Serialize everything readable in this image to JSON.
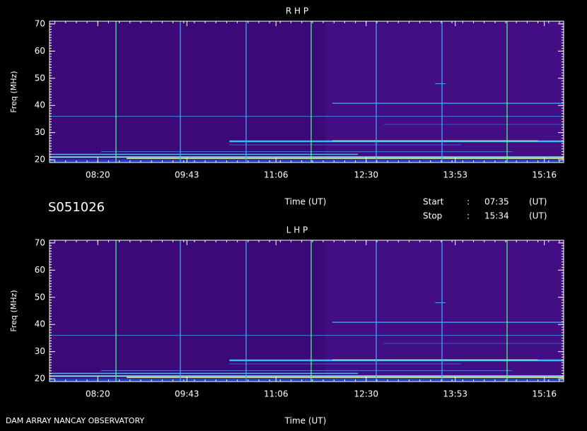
{
  "header": {
    "label": "S051026",
    "start_label": "Start",
    "stop_label": "Stop",
    "start_sep": ":",
    "stop_sep": ":",
    "start": "07:35",
    "stop": "15:34",
    "start_unit": "(UT)",
    "stop_unit": "(UT)"
  },
  "footer": {
    "left": "DAM ARRAY  NANCAY OBSERVATORY"
  },
  "chart_data": [
    {
      "type": "spectrogram",
      "title": "R H P",
      "y_label": "Freq (MHz)",
      "x_label": "Time (UT)",
      "xlim": [
        455,
        934
      ],
      "xticks": [
        {
          "value": 500,
          "label": "08:20"
        },
        {
          "value": 583,
          "label": "09:43"
        },
        {
          "value": 666,
          "label": "11:06"
        },
        {
          "value": 750,
          "label": "12:30"
        },
        {
          "value": 833,
          "label": "13:53"
        },
        {
          "value": 916,
          "label": "15:16"
        }
      ],
      "ylim": [
        19,
        71
      ],
      "yticks": [
        20,
        30,
        40,
        50,
        60,
        70
      ]
    },
    {
      "type": "spectrogram",
      "title": "L H P",
      "y_label": "Freq (MHz)",
      "x_label": "Time (UT)",
      "xlim": [
        455,
        934
      ],
      "xticks": [
        {
          "value": 500,
          "label": "08:20"
        },
        {
          "value": 583,
          "label": "09:43"
        },
        {
          "value": 666,
          "label": "11:06"
        },
        {
          "value": 750,
          "label": "12:30"
        },
        {
          "value": 833,
          "label": "13:53"
        },
        {
          "value": 916,
          "label": "15:16"
        }
      ],
      "ylim": [
        19,
        71
      ],
      "yticks": [
        20,
        30,
        40,
        50,
        60,
        70
      ]
    }
  ]
}
